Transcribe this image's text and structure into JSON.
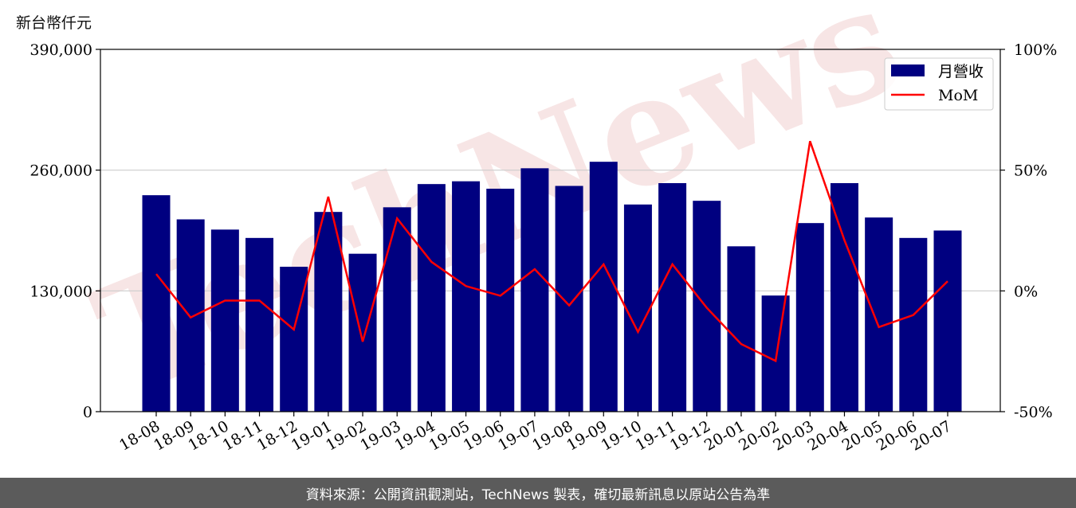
{
  "unit_label": "新台幣仟元",
  "footer_text": "資料來源：公開資訊觀測站，TechNews 製表，確切最新訊息以原站公告為準",
  "watermark_text": "TechNews",
  "colors": {
    "bar": "#000080",
    "line": "#ff0000",
    "grid": "#cccccc",
    "watermark": "#f2d0d0",
    "footer_bg": "#5b5b5b"
  },
  "chart_data": {
    "type": "bar",
    "categories": [
      "18-08",
      "18-09",
      "18-10",
      "18-11",
      "18-12",
      "19-01",
      "19-02",
      "19-03",
      "19-04",
      "19-05",
      "19-06",
      "19-07",
      "19-08",
      "19-09",
      "19-10",
      "19-11",
      "19-12",
      "20-01",
      "20-02",
      "20-03",
      "20-04",
      "20-05",
      "20-06",
      "20-07"
    ],
    "series": [
      {
        "name": "月營收",
        "type": "bar",
        "axis": "left",
        "values": [
          233000,
          207000,
          196000,
          187000,
          156000,
          215000,
          170000,
          220000,
          245000,
          248000,
          240000,
          262000,
          243000,
          269000,
          223000,
          246000,
          227000,
          178000,
          125000,
          203000,
          246000,
          209000,
          187000,
          195000
        ]
      },
      {
        "name": "MoM",
        "type": "line",
        "axis": "right",
        "values": [
          7,
          -11,
          -4,
          -4,
          -16,
          39,
          -21,
          30,
          12,
          2,
          -2,
          9,
          -6,
          11,
          -17,
          11,
          -7,
          -22,
          -29,
          62,
          21,
          -15,
          -10,
          4
        ]
      }
    ],
    "y_left": {
      "min": 0,
      "max": 390000,
      "ticks": [
        0,
        130000,
        260000,
        390000
      ],
      "tick_labels": [
        "0",
        "130,000",
        "260,000",
        "390,000"
      ]
    },
    "y_right": {
      "min": -50,
      "max": 100,
      "ticks": [
        -50,
        0,
        50,
        100
      ],
      "tick_labels": [
        "-50%",
        "0%",
        "50%",
        "100%"
      ]
    },
    "grid": "horizontal",
    "legend_position": "top-right"
  }
}
